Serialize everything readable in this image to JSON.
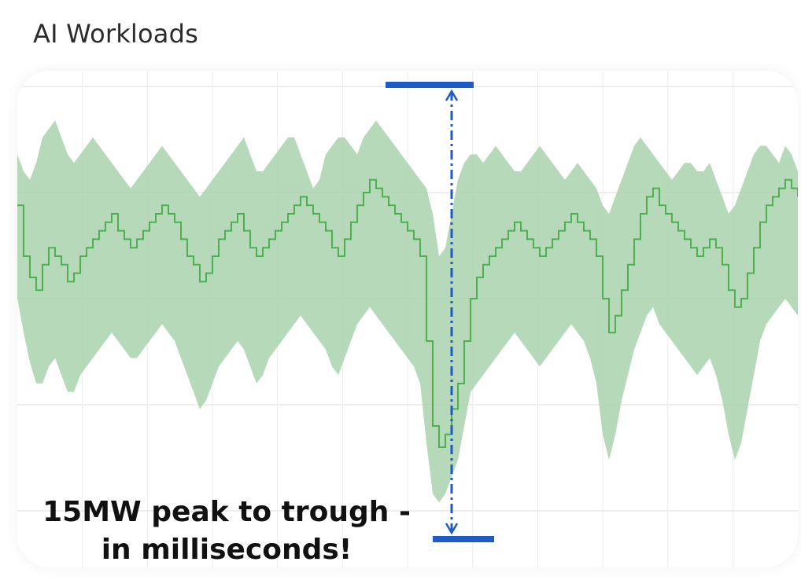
{
  "header": {
    "title": "AI Workloads"
  },
  "annotation": {
    "line1": "15MW peak to trough -",
    "line2": "in milliseconds!",
    "marker_color": "#1f5bc7"
  },
  "colors": {
    "band": "#a9d3ad",
    "line": "#4caf50",
    "grid": "#dedede"
  },
  "chart_data": {
    "type": "area",
    "title": "AI Workloads",
    "xlabel": "",
    "ylabel": "",
    "grid": true,
    "legend": "none",
    "ylim": [
      0,
      100
    ],
    "series": [
      {
        "name": "",
        "y": [
          72,
          60,
          55,
          52,
          58,
          62,
          60,
          58,
          54,
          56,
          60,
          62,
          64,
          66,
          68,
          70,
          66,
          64,
          62,
          64,
          66,
          68,
          70,
          72,
          70,
          68,
          64,
          60,
          58,
          54,
          56,
          60,
          64,
          66,
          68,
          70,
          66,
          62,
          60,
          62,
          64,
          66,
          68,
          70,
          72,
          74,
          72,
          70,
          68,
          66,
          62,
          60,
          64,
          68,
          72,
          75,
          78,
          76,
          74,
          72,
          70,
          68,
          66,
          64,
          60,
          40,
          20,
          15,
          18,
          24,
          30,
          40,
          50,
          55,
          58,
          60,
          62,
          64,
          66,
          68,
          66,
          64,
          62,
          60,
          62,
          64,
          66,
          68,
          70,
          68,
          66,
          64,
          60,
          50,
          42,
          46,
          52,
          58,
          64,
          70,
          74,
          76,
          72,
          70,
          68,
          66,
          64,
          62,
          60,
          62,
          64,
          62,
          58,
          52,
          48,
          50,
          56,
          62,
          68,
          72,
          74,
          76,
          78,
          76,
          74
        ],
        "upper": [
          84,
          80,
          78,
          82,
          88,
          90,
          92,
          88,
          84,
          82,
          84,
          86,
          88,
          86,
          84,
          82,
          80,
          78,
          76,
          78,
          80,
          82,
          84,
          86,
          84,
          82,
          80,
          78,
          76,
          74,
          76,
          78,
          80,
          82,
          84,
          86,
          88,
          84,
          80,
          80,
          82,
          84,
          86,
          88,
          88,
          84,
          80,
          76,
          78,
          84,
          86,
          88,
          88,
          86,
          84,
          88,
          90,
          92,
          90,
          88,
          86,
          84,
          82,
          80,
          78,
          76,
          70,
          60,
          62,
          70,
          78,
          82,
          84,
          84,
          82,
          84,
          86,
          84,
          82,
          80,
          80,
          82,
          84,
          86,
          84,
          82,
          80,
          78,
          80,
          82,
          80,
          78,
          76,
          72,
          70,
          74,
          78,
          82,
          86,
          88,
          86,
          84,
          82,
          80,
          78,
          80,
          82,
          82,
          80,
          80,
          82,
          78,
          74,
          70,
          72,
          76,
          80,
          84,
          86,
          86,
          84,
          82,
          86,
          84,
          80
        ],
        "lower": [
          50,
          42,
          35,
          30,
          30,
          34,
          36,
          32,
          28,
          28,
          32,
          34,
          36,
          38,
          40,
          42,
          40,
          38,
          36,
          36,
          38,
          40,
          42,
          44,
          42,
          40,
          36,
          32,
          28,
          24,
          26,
          30,
          34,
          36,
          38,
          40,
          38,
          34,
          30,
          32,
          36,
          38,
          40,
          42,
          44,
          46,
          44,
          42,
          40,
          38,
          34,
          32,
          36,
          40,
          44,
          46,
          48,
          46,
          44,
          42,
          40,
          38,
          36,
          34,
          30,
          16,
          4,
          2,
          4,
          8,
          12,
          20,
          28,
          30,
          32,
          34,
          36,
          38,
          40,
          42,
          40,
          38,
          36,
          34,
          36,
          38,
          40,
          42,
          44,
          42,
          40,
          36,
          30,
          18,
          12,
          18,
          26,
          32,
          38,
          42,
          46,
          48,
          44,
          42,
          40,
          38,
          36,
          34,
          32,
          34,
          36,
          32,
          26,
          18,
          12,
          16,
          24,
          32,
          40,
          44,
          46,
          48,
          50,
          48,
          46
        ]
      }
    ]
  }
}
